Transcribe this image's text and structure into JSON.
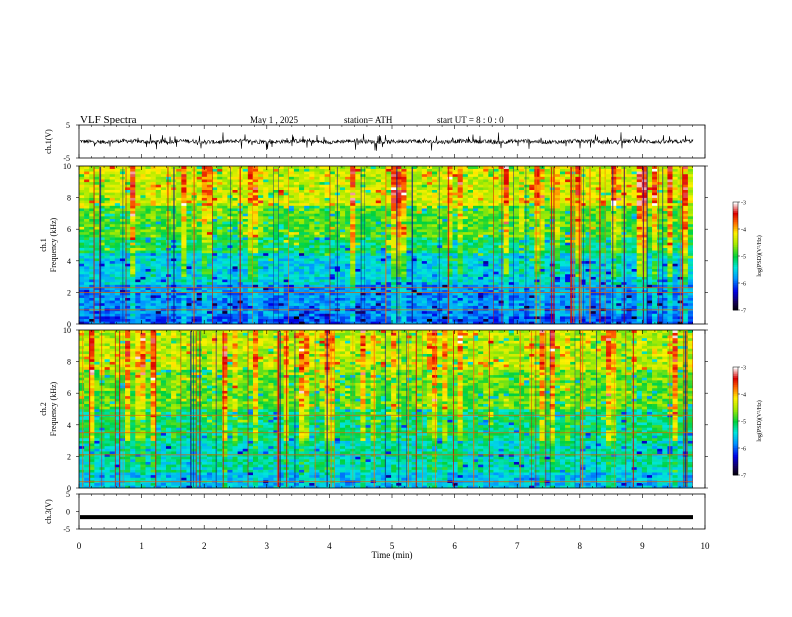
{
  "header": {
    "title": "VLF  Spectra",
    "date": "May 1  , 2025",
    "station": "station= ATH",
    "start": "start  UT  =    8  : 0  : 0"
  },
  "chart_data": [
    {
      "id": "ch1-waveform",
      "type": "line",
      "ylabel": "ch.1(V)",
      "ylim": [
        -5,
        5
      ],
      "yticks": [
        "5",
        "-5"
      ],
      "xlim": [
        0,
        10
      ],
      "description_values": "noisy waveform centered near 0 V"
    },
    {
      "id": "ch1-spectrogram",
      "type": "heatmap",
      "ylabel_line1": "ch.1",
      "ylabel_line2": "Frequency  (kHz)",
      "ylim": [
        0,
        10
      ],
      "yticks": [
        "0",
        "2",
        "4",
        "6",
        "8",
        "10"
      ],
      "xlim": [
        0,
        10
      ],
      "colorbar": {
        "label": "log(PSD)(V²/Hz)",
        "range": [
          -7,
          -3
        ],
        "ticks": [
          "-3",
          "-4",
          "-5",
          "-6",
          "-7"
        ]
      }
    },
    {
      "id": "ch2-spectrogram",
      "type": "heatmap",
      "ylabel_line1": "ch.2",
      "ylabel_line2": "Frequency  (kHz)",
      "ylim": [
        0,
        10
      ],
      "yticks": [
        "0",
        "2",
        "4",
        "6",
        "8",
        "10"
      ],
      "xlim": [
        0,
        10
      ],
      "colorbar": {
        "label": "log(PSD)(V²/Hz)",
        "range": [
          -7,
          -3
        ],
        "ticks": [
          "-3",
          "-4",
          "-5",
          "-6",
          "-7"
        ]
      }
    },
    {
      "id": "ch3-waveform",
      "type": "line",
      "ylabel": "ch.3(V)",
      "ylim": [
        -5,
        5
      ],
      "yticks": [
        "5",
        "0",
        "-5"
      ],
      "xlim": [
        0,
        10
      ],
      "xlabel": "Time  (min)",
      "xticks": [
        "0",
        "1",
        "2",
        "3",
        "4",
        "5",
        "6",
        "7",
        "8",
        "9",
        "10"
      ],
      "description_values": "flat thick trace near -1.5 V"
    }
  ]
}
